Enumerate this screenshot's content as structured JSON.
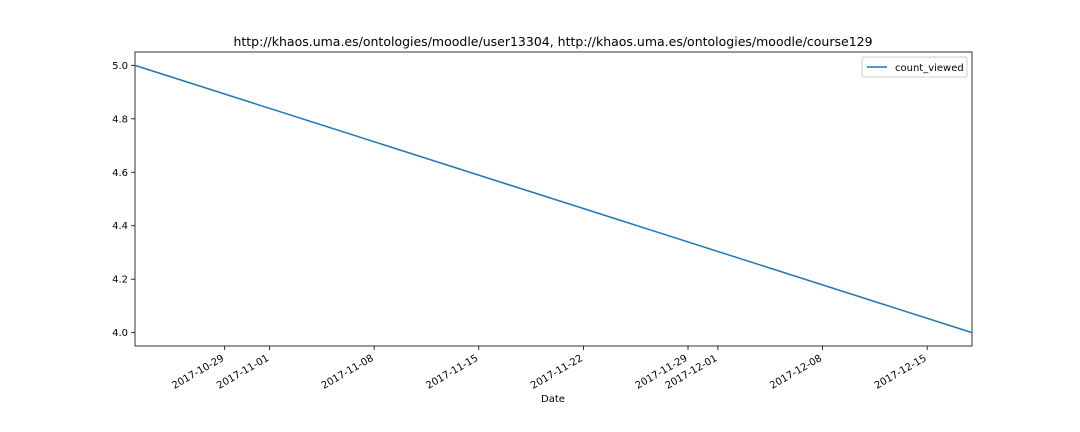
{
  "chart_data": {
    "type": "line",
    "title": "http://khaos.uma.es/ontologies/moodle/user13304, http://khaos.uma.es/ontologies/moodle/course129",
    "xlabel": "Date",
    "ylabel": "",
    "x_type": "date",
    "xlim": [
      "2017-10-23",
      "2017-12-18"
    ],
    "ylim": [
      3.95,
      5.05
    ],
    "x_ticks": [
      "2017-10-29",
      "2017-11-01",
      "2017-11-08",
      "2017-11-15",
      "2017-11-22",
      "2017-11-29",
      "2017-12-01",
      "2017-12-08",
      "2017-12-15"
    ],
    "y_ticks": [
      "4.0",
      "4.2",
      "4.4",
      "4.6",
      "4.8",
      "5.0"
    ],
    "legend_position": "top-right",
    "grid": false,
    "series": [
      {
        "name": "count_viewed",
        "color": "#1f77b4",
        "x": [
          "2017-10-23",
          "2017-12-18"
        ],
        "y": [
          5.0,
          4.0
        ]
      }
    ]
  }
}
